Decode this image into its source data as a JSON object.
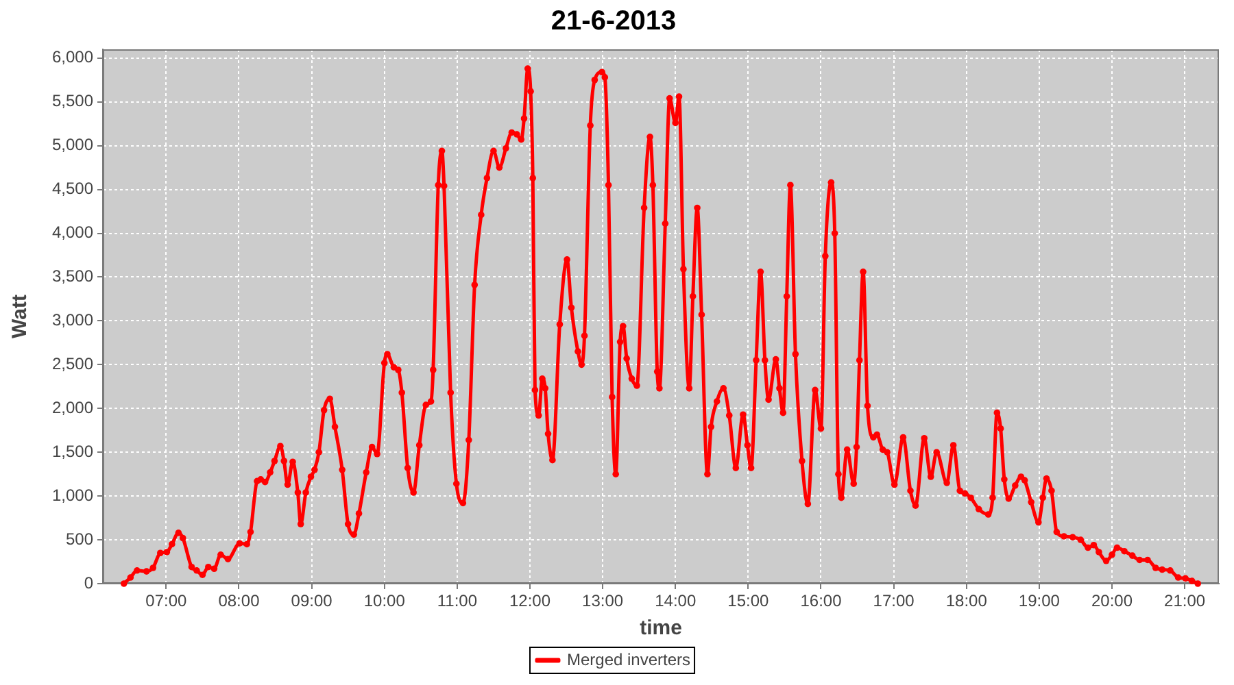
{
  "chart_data": {
    "type": "line",
    "title": "21-6-2013",
    "xlabel": "time",
    "ylabel": "Watt",
    "x": [
      6.42,
      6.51,
      6.6,
      6.73,
      6.82,
      6.92,
      7.01,
      7.08,
      7.17,
      7.23,
      7.35,
      7.42,
      7.5,
      7.58,
      7.66,
      7.75,
      7.85,
      8.01,
      8.11,
      8.16,
      8.25,
      8.3,
      8.36,
      8.43,
      8.49,
      8.57,
      8.62,
      8.67,
      8.74,
      8.81,
      8.85,
      8.92,
      8.99,
      9.04,
      9.1,
      9.17,
      9.25,
      9.32,
      9.42,
      9.5,
      9.58,
      9.65,
      9.75,
      9.83,
      9.9,
      10.0,
      10.04,
      10.13,
      10.19,
      10.24,
      10.32,
      10.4,
      10.48,
      10.57,
      10.64,
      10.67,
      10.74,
      10.79,
      10.82,
      10.91,
      10.99,
      11.08,
      11.16,
      11.24,
      11.33,
      11.41,
      11.5,
      11.58,
      11.67,
      11.75,
      11.82,
      11.88,
      11.92,
      11.97,
      12.01,
      12.04,
      12.07,
      12.12,
      12.17,
      12.21,
      12.25,
      12.31,
      12.41,
      12.51,
      12.57,
      12.66,
      12.71,
      12.75,
      12.83,
      12.89,
      12.99,
      13.03,
      13.08,
      13.13,
      13.18,
      13.24,
      13.28,
      13.33,
      13.4,
      13.47,
      13.57,
      13.65,
      13.69,
      13.75,
      13.78,
      13.86,
      13.92,
      14.0,
      14.05,
      14.11,
      14.19,
      14.24,
      14.3,
      14.36,
      14.44,
      14.49,
      14.57,
      14.66,
      14.74,
      14.83,
      14.93,
      14.99,
      15.04,
      15.11,
      15.17,
      15.23,
      15.28,
      15.38,
      15.43,
      15.48,
      15.53,
      15.58,
      15.65,
      15.74,
      15.82,
      15.92,
      16.0,
      16.06,
      16.14,
      16.19,
      16.24,
      16.28,
      16.36,
      16.45,
      16.49,
      16.53,
      16.58,
      16.64,
      16.72,
      16.77,
      16.85,
      16.91,
      17.01,
      17.13,
      17.23,
      17.3,
      17.42,
      17.51,
      17.59,
      17.73,
      17.82,
      17.91,
      17.98,
      18.06,
      18.17,
      18.3,
      18.36,
      18.42,
      18.47,
      18.52,
      18.58,
      18.67,
      18.75,
      18.8,
      18.89,
      18.99,
      19.05,
      19.1,
      19.17,
      19.24,
      19.34,
      19.46,
      19.57,
      19.67,
      19.75,
      19.82,
      19.92,
      20.0,
      20.07,
      20.17,
      20.28,
      20.38,
      20.49,
      20.6,
      20.69,
      20.8,
      20.91,
      21.01,
      21.1,
      21.18
    ],
    "series": [
      {
        "name": "Merged inverters",
        "color": "#ff0000",
        "values": [
          0,
          70,
          150,
          140,
          180,
          350,
          360,
          450,
          580,
          520,
          190,
          150,
          100,
          190,
          170,
          330,
          280,
          460,
          450,
          590,
          1170,
          1190,
          1160,
          1270,
          1400,
          1570,
          1400,
          1130,
          1390,
          1040,
          680,
          1040,
          1220,
          1300,
          1500,
          1980,
          2110,
          1790,
          1300,
          680,
          560,
          800,
          1270,
          1560,
          1480,
          2520,
          2620,
          2470,
          2440,
          2180,
          1320,
          1040,
          1580,
          2040,
          2080,
          2440,
          4550,
          4940,
          4540,
          2180,
          1140,
          920,
          1640,
          3410,
          4210,
          4630,
          4940,
          4750,
          4970,
          5150,
          5130,
          5070,
          5310,
          5880,
          5620,
          4630,
          2210,
          1920,
          2340,
          2230,
          1710,
          1410,
          2960,
          3700,
          3150,
          2650,
          2500,
          2830,
          5230,
          5750,
          5840,
          5780,
          4550,
          2130,
          1250,
          2760,
          2940,
          2570,
          2340,
          2260,
          4290,
          5100,
          4550,
          2420,
          2230,
          4110,
          5540,
          5260,
          5560,
          3590,
          2230,
          3280,
          4290,
          3070,
          1250,
          1790,
          2080,
          2230,
          1920,
          1320,
          1930,
          1580,
          1320,
          2550,
          3560,
          2550,
          2100,
          2560,
          2230,
          1950,
          3280,
          4550,
          2620,
          1400,
          910,
          2210,
          1770,
          3740,
          4580,
          4000,
          1250,
          980,
          1530,
          1140,
          1560,
          2550,
          3560,
          2030,
          1670,
          1700,
          1530,
          1500,
          1130,
          1670,
          1060,
          890,
          1660,
          1220,
          1500,
          1150,
          1580,
          1060,
          1030,
          980,
          850,
          790,
          980,
          1950,
          1770,
          1190,
          970,
          1120,
          1220,
          1180,
          930,
          700,
          980,
          1200,
          1060,
          590,
          540,
          530,
          500,
          410,
          440,
          360,
          260,
          330,
          410,
          370,
          320,
          270,
          270,
          180,
          160,
          150,
          70,
          60,
          30,
          0
        ]
      }
    ],
    "xlim": [
      6.13,
      21.47
    ],
    "xticks": [
      {
        "value": 7,
        "label": "07:00"
      },
      {
        "value": 8,
        "label": "08:00"
      },
      {
        "value": 9,
        "label": "09:00"
      },
      {
        "value": 10,
        "label": "10:00"
      },
      {
        "value": 11,
        "label": "11:00"
      },
      {
        "value": 12,
        "label": "12:00"
      },
      {
        "value": 13,
        "label": "13:00"
      },
      {
        "value": 14,
        "label": "14:00"
      },
      {
        "value": 15,
        "label": "15:00"
      },
      {
        "value": 16,
        "label": "16:00"
      },
      {
        "value": 17,
        "label": "17:00"
      },
      {
        "value": 18,
        "label": "18:00"
      },
      {
        "value": 19,
        "label": "19:00"
      },
      {
        "value": 20,
        "label": "20:00"
      },
      {
        "value": 21,
        "label": "21:00"
      }
    ],
    "ylim": [
      0,
      6100
    ],
    "yticks": [
      0,
      500,
      {
        "value": 1000,
        "label": "1,000"
      },
      {
        "value": 1500,
        "label": "1,500"
      },
      {
        "value": 2000,
        "label": "2,000"
      },
      {
        "value": 2500,
        "label": "2,500"
      },
      {
        "value": 3000,
        "label": "3,000"
      },
      {
        "value": 3500,
        "label": "3,500"
      },
      {
        "value": 4000,
        "label": "4,000"
      },
      {
        "value": 4500,
        "label": "4,500"
      },
      {
        "value": 5000,
        "label": "5,000"
      },
      {
        "value": 5500,
        "label": "5,500"
      },
      {
        "value": 6000,
        "label": "6,000"
      }
    ],
    "grid": true,
    "legend": "bottom",
    "marker": "circle",
    "line_style": "solid"
  }
}
